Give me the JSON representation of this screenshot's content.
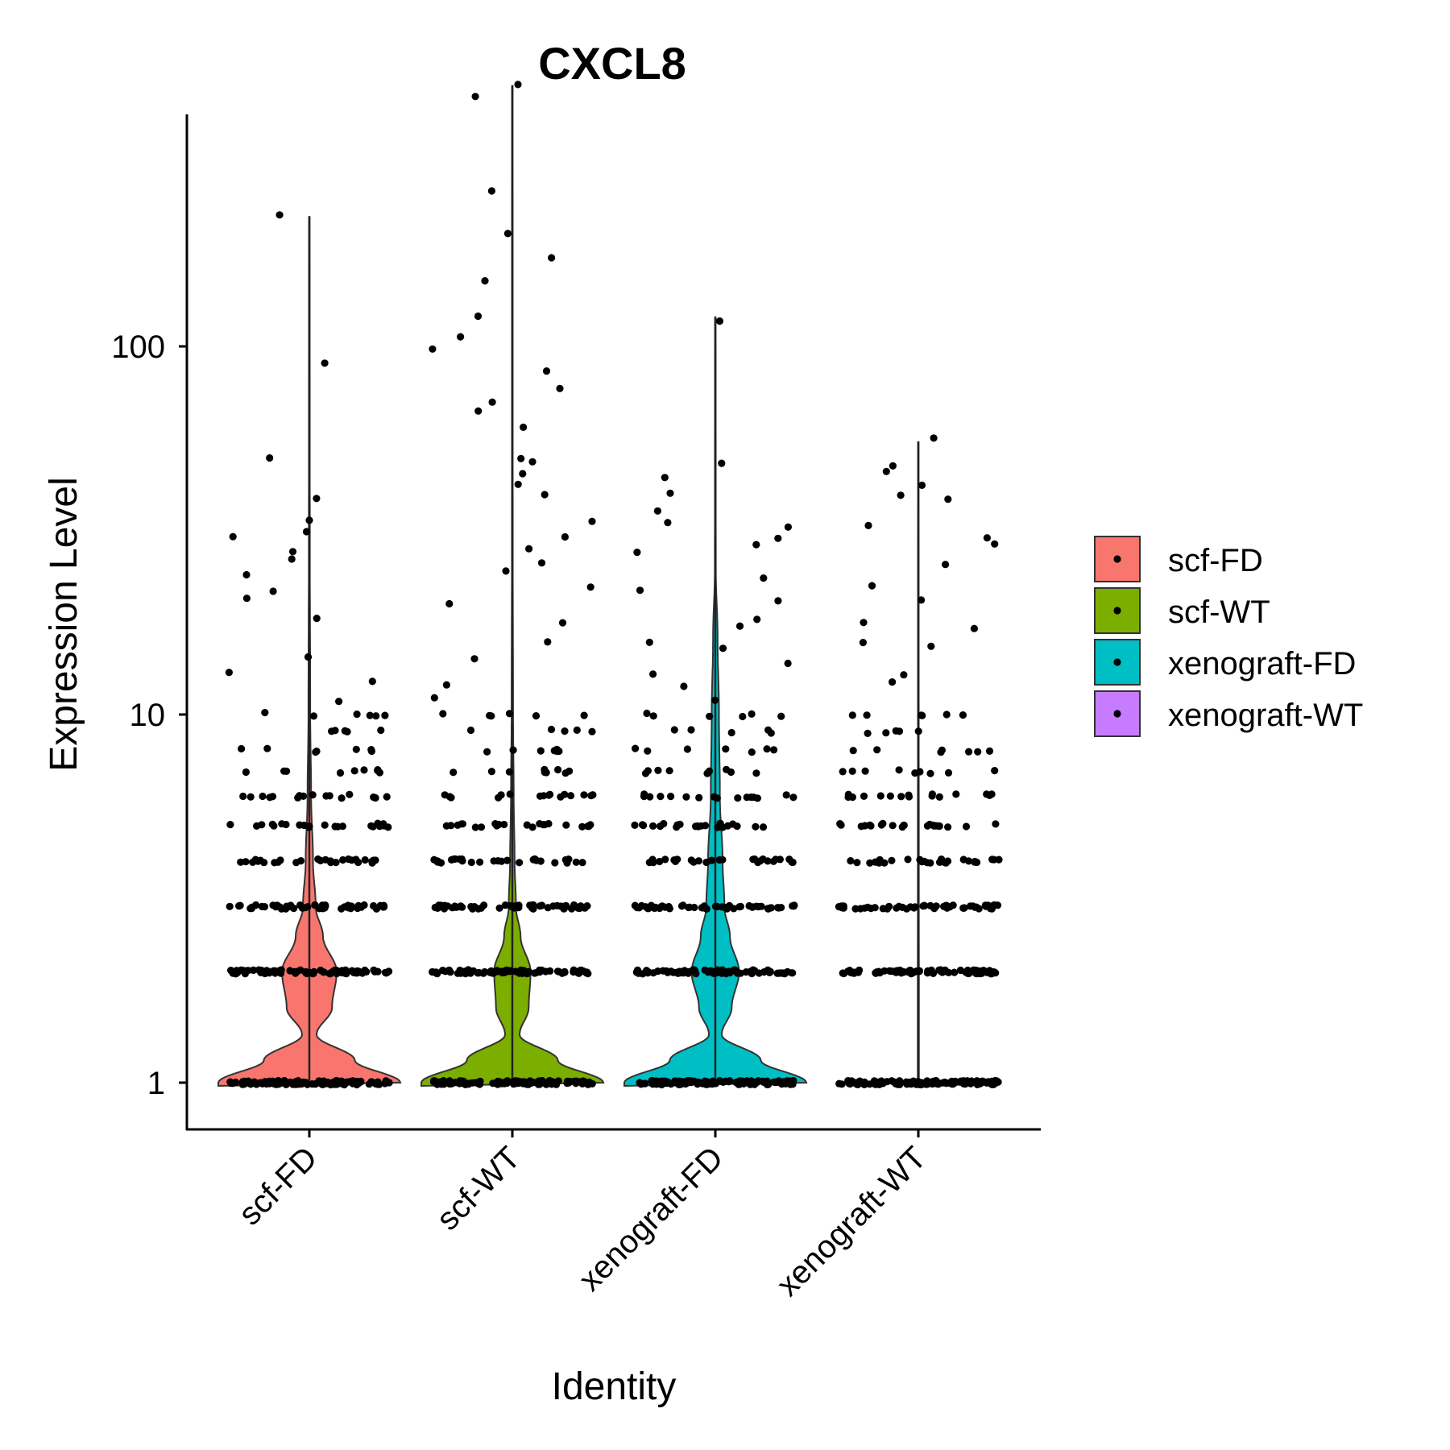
{
  "chart_data": {
    "type": "violin",
    "title": "CXCL8",
    "xlabel": "Identity",
    "ylabel": "Expression Level",
    "y_scale": "log10",
    "ylim": [
      0.87,
      550
    ],
    "y_ticks": [
      1,
      10,
      100
    ],
    "y_tick_labels": [
      "1",
      "10",
      "100"
    ],
    "grid": false,
    "legend": {
      "position": "right",
      "entries": [
        "scf-FD",
        "scf-WT",
        "xenograft-FD",
        "xenograft-WT"
      ]
    },
    "categories": [
      "scf-FD",
      "scf-WT",
      "xenograft-FD",
      "xenograft-WT"
    ],
    "series": [
      {
        "name": "scf-FD",
        "color": "#F8766D",
        "max": 225,
        "density": [
          [
            1,
            1.0
          ],
          [
            1.15,
            0.5
          ],
          [
            1.35,
            0.08
          ],
          [
            1.6,
            0.25
          ],
          [
            2,
            0.3
          ],
          [
            2.5,
            0.15
          ],
          [
            3,
            0.07
          ],
          [
            4,
            0.04
          ],
          [
            6,
            0.02
          ],
          [
            10,
            0.01
          ],
          [
            30,
            0.005
          ],
          [
            225,
            0.003
          ]
        ],
        "highlighted_values": [
          1,
          2,
          3,
          4,
          5,
          6,
          7,
          8,
          9,
          10,
          11,
          12,
          13,
          14,
          18,
          21,
          22,
          24,
          26,
          28,
          30,
          31,
          34,
          38,
          50,
          90,
          225
        ]
      },
      {
        "name": "scf-WT",
        "color": "#7CAE00",
        "max": 510,
        "density": [
          [
            1,
            1.0
          ],
          [
            1.15,
            0.5
          ],
          [
            1.35,
            0.08
          ],
          [
            1.6,
            0.18
          ],
          [
            2,
            0.2
          ],
          [
            2.5,
            0.09
          ],
          [
            3,
            0.04
          ],
          [
            4,
            0.025
          ],
          [
            6,
            0.015
          ],
          [
            10,
            0.008
          ],
          [
            30,
            0.004
          ],
          [
            510,
            0.003
          ]
        ],
        "highlighted_values": [
          1,
          2,
          3,
          4,
          5,
          6,
          7,
          8,
          9,
          10,
          11,
          12,
          14,
          16,
          18,
          20,
          22,
          24,
          26,
          28,
          31,
          34,
          40,
          42,
          45,
          48,
          50,
          60,
          68,
          72,
          78,
          85,
          96,
          105,
          122,
          148,
          175,
          200,
          270,
          480,
          510
        ]
      },
      {
        "name": "xenograft-FD",
        "color": "#00BFC4",
        "max": 120,
        "density": [
          [
            1,
            1.0
          ],
          [
            1.15,
            0.5
          ],
          [
            1.35,
            0.07
          ],
          [
            1.6,
            0.18
          ],
          [
            2,
            0.26
          ],
          [
            2.5,
            0.16
          ],
          [
            3,
            0.1
          ],
          [
            4,
            0.08
          ],
          [
            6,
            0.05
          ],
          [
            10,
            0.04
          ],
          [
            16,
            0.025
          ],
          [
            25,
            0.005
          ],
          [
            120,
            0.003
          ]
        ],
        "highlighted_values": [
          1,
          2,
          3,
          4,
          5,
          6,
          7,
          8,
          9,
          10,
          11,
          12,
          13,
          14,
          15,
          16,
          17,
          18,
          20,
          22,
          24,
          28,
          29,
          30,
          32,
          34,
          36,
          40,
          45,
          48,
          118
        ]
      },
      {
        "name": "xenograft-WT",
        "color": "#C77CFF",
        "max": 55,
        "density": [
          [
            1,
            0.02
          ],
          [
            1.02,
            0.006
          ],
          [
            55,
            0.003
          ]
        ],
        "highlighted_values": [
          1,
          2,
          3,
          4,
          5,
          6,
          7,
          8,
          9,
          10,
          12,
          13,
          15,
          16,
          17,
          18,
          20,
          22,
          25,
          29,
          30,
          32,
          38,
          40,
          42,
          45,
          48,
          55
        ]
      }
    ]
  }
}
